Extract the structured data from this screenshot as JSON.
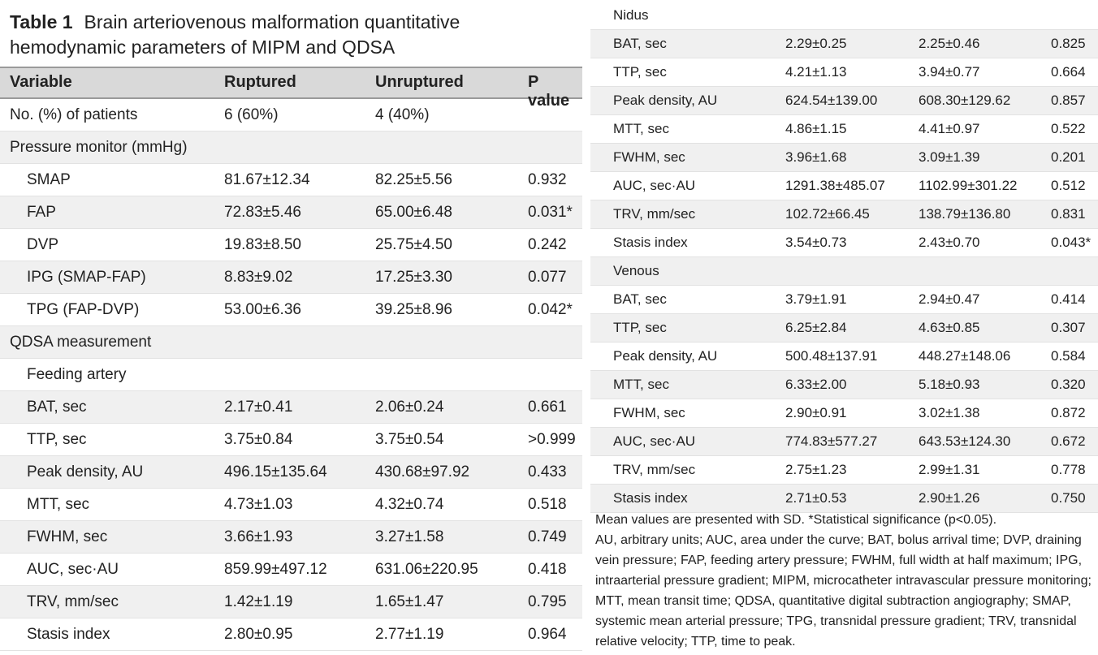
{
  "table": {
    "title_num": "Table 1",
    "title_text": "Brain arteriovenous malformation quantitative hemodynamic parameters of MIPM and QDSA",
    "headers": {
      "variable": "Variable",
      "ruptured": "Ruptured",
      "unruptured": "Unruptured",
      "pvalue": "P value"
    },
    "left_rows": [
      {
        "kind": "data",
        "label": "No. (%) of patients",
        "r": "6 (60%)",
        "u": "4 (40%)",
        "p": "",
        "shade": false,
        "indent": 0
      },
      {
        "kind": "section",
        "label": "Pressure monitor (mmHg)",
        "r": "",
        "u": "",
        "p": "",
        "shade": true,
        "indent": 0
      },
      {
        "kind": "data",
        "label": "SMAP",
        "r": "81.67±12.34",
        "u": "82.25±5.56",
        "p": "0.932",
        "shade": false,
        "indent": 1
      },
      {
        "kind": "data",
        "label": "FAP",
        "r": "72.83±5.46",
        "u": "65.00±6.48",
        "p": "0.031*",
        "shade": true,
        "indent": 1
      },
      {
        "kind": "data",
        "label": "DVP",
        "r": "19.83±8.50",
        "u": "25.75±4.50",
        "p": "0.242",
        "shade": false,
        "indent": 1
      },
      {
        "kind": "data",
        "label": "IPG (SMAP-FAP)",
        "r": "8.83±9.02",
        "u": "17.25±3.30",
        "p": "0.077",
        "shade": true,
        "indent": 1
      },
      {
        "kind": "data",
        "label": "TPG (FAP-DVP)",
        "r": "53.00±6.36",
        "u": "39.25±8.96",
        "p": "0.042*",
        "shade": false,
        "indent": 1
      },
      {
        "kind": "section",
        "label": "QDSA measurement",
        "r": "",
        "u": "",
        "p": "",
        "shade": true,
        "indent": 0
      },
      {
        "kind": "section",
        "label": "Feeding artery",
        "r": "",
        "u": "",
        "p": "",
        "shade": false,
        "indent": 1
      },
      {
        "kind": "data",
        "label": "BAT, sec",
        "r": "2.17±0.41",
        "u": "2.06±0.24",
        "p": "0.661",
        "shade": true,
        "indent": 1
      },
      {
        "kind": "data",
        "label": "TTP, sec",
        "r": "3.75±0.84",
        "u": "3.75±0.54",
        "p": ">0.999",
        "shade": false,
        "indent": 1
      },
      {
        "kind": "data",
        "label": "Peak density, AU",
        "r": "496.15±135.64",
        "u": "430.68±97.92",
        "p": "0.433",
        "shade": true,
        "indent": 1
      },
      {
        "kind": "data",
        "label": "MTT, sec",
        "r": "4.73±1.03",
        "u": "4.32±0.74",
        "p": "0.518",
        "shade": false,
        "indent": 1
      },
      {
        "kind": "data",
        "label": "FWHM, sec",
        "r": "3.66±1.93",
        "u": "3.27±1.58",
        "p": "0.749",
        "shade": true,
        "indent": 1
      },
      {
        "kind": "data",
        "label": "AUC, sec·AU",
        "r": "859.99±497.12",
        "u": "631.06±220.95",
        "p": "0.418",
        "shade": false,
        "indent": 1
      },
      {
        "kind": "data",
        "label": "TRV, mm/sec",
        "r": "1.42±1.19",
        "u": "1.65±1.47",
        "p": "0.795",
        "shade": true,
        "indent": 1
      },
      {
        "kind": "data",
        "label": "Stasis index",
        "r": "2.80±0.95",
        "u": "2.77±1.19",
        "p": "0.964",
        "shade": false,
        "indent": 1
      }
    ],
    "right_rows": [
      {
        "kind": "section",
        "label": "Nidus",
        "r": "",
        "u": "",
        "p": "",
        "shade": false
      },
      {
        "kind": "data",
        "label": "BAT, sec",
        "r": "2.29±0.25",
        "u": "2.25±0.46",
        "p": "0.825",
        "shade": true
      },
      {
        "kind": "data",
        "label": "TTP, sec",
        "r": "4.21±1.13",
        "u": "3.94±0.77",
        "p": "0.664",
        "shade": false
      },
      {
        "kind": "data",
        "label": "Peak density, AU",
        "r": "624.54±139.00",
        "u": "608.30±129.62",
        "p": "0.857",
        "shade": true
      },
      {
        "kind": "data",
        "label": "MTT, sec",
        "r": "4.86±1.15",
        "u": "4.41±0.97",
        "p": "0.522",
        "shade": false
      },
      {
        "kind": "data",
        "label": "FWHM, sec",
        "r": "3.96±1.68",
        "u": "3.09±1.39",
        "p": "0.201",
        "shade": true
      },
      {
        "kind": "data",
        "label": "AUC, sec·AU",
        "r": "1291.38±485.07",
        "u": "1102.99±301.22",
        "p": "0.512",
        "shade": false
      },
      {
        "kind": "data",
        "label": "TRV, mm/sec",
        "r": "102.72±66.45",
        "u": "138.79±136.80",
        "p": "0.831",
        "shade": true
      },
      {
        "kind": "data",
        "label": "Stasis index",
        "r": "3.54±0.73",
        "u": "2.43±0.70",
        "p": "0.043*",
        "shade": false
      },
      {
        "kind": "section",
        "label": "Venous",
        "r": "",
        "u": "",
        "p": "",
        "shade": true
      },
      {
        "kind": "data",
        "label": "BAT, sec",
        "r": "3.79±1.91",
        "u": "2.94±0.47",
        "p": "0.414",
        "shade": false
      },
      {
        "kind": "data",
        "label": "TTP, sec",
        "r": "6.25±2.84",
        "u": "4.63±0.85",
        "p": "0.307",
        "shade": true
      },
      {
        "kind": "data",
        "label": "Peak density, AU",
        "r": "500.48±137.91",
        "u": "448.27±148.06",
        "p": "0.584",
        "shade": false
      },
      {
        "kind": "data",
        "label": "MTT, sec",
        "r": "6.33±2.00",
        "u": "5.18±0.93",
        "p": "0.320",
        "shade": true
      },
      {
        "kind": "data",
        "label": "FWHM, sec",
        "r": "2.90±0.91",
        "u": "3.02±1.38",
        "p": "0.872",
        "shade": false
      },
      {
        "kind": "data",
        "label": "AUC, sec·AU",
        "r": "774.83±577.27",
        "u": "643.53±124.30",
        "p": "0.672",
        "shade": true
      },
      {
        "kind": "data",
        "label": "TRV, mm/sec",
        "r": "2.75±1.23",
        "u": "2.99±1.31",
        "p": "0.778",
        "shade": false
      },
      {
        "kind": "data",
        "label": "Stasis index",
        "r": "2.71±0.53",
        "u": "2.90±1.26",
        "p": "0.750",
        "shade": true
      }
    ],
    "footnote_1": "Mean values are presented with SD. *Statistical significance (p<0.05).",
    "footnote_2": "AU, arbitrary units; AUC, area under the curve; BAT, bolus arrival time; DVP, draining vein pressure; FAP, feeding artery pressure; FWHM, full width at half maximum; IPG, intraarterial pressure gradient; MIPM, microcatheter intravascular pressure monitoring; MTT, mean transit time; QDSA, quantitative digital subtraction angiography; SMAP, systemic mean arterial pressure; TPG, transnidal pressure gradient; TRV, transnidal relative velocity; TTP, time to peak."
  }
}
